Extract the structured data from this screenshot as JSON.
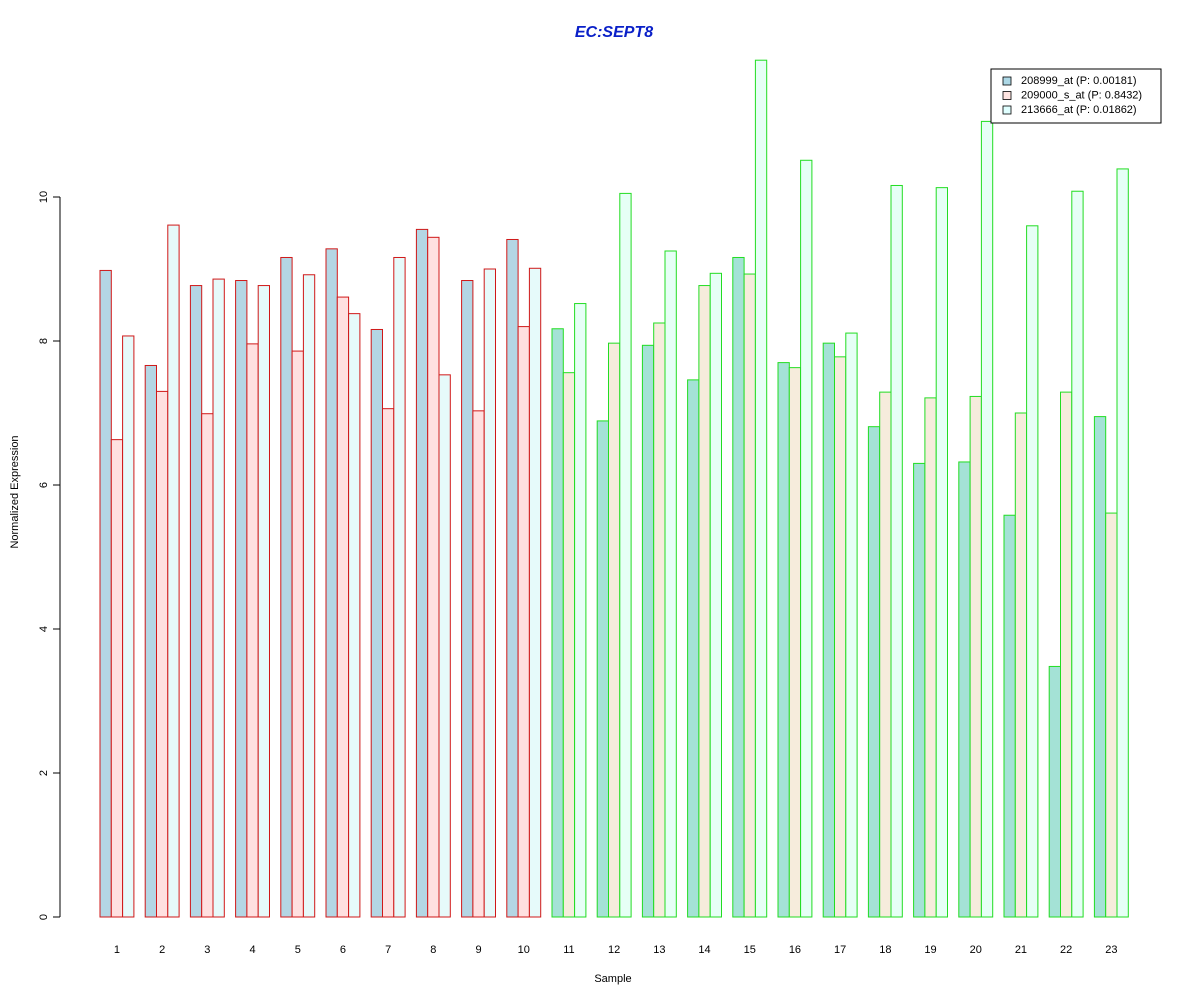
{
  "chart_data": {
    "type": "bar",
    "title": "EC:SEPT8",
    "xlabel": "Sample",
    "ylabel": "Normalized Expression",
    "categories": [
      "1",
      "2",
      "3",
      "4",
      "5",
      "6",
      "7",
      "8",
      "9",
      "10",
      "11",
      "12",
      "13",
      "14",
      "15",
      "16",
      "17",
      "18",
      "19",
      "20",
      "21",
      "22",
      "23"
    ],
    "yticks": [
      "0",
      "2",
      "4",
      "6",
      "8",
      "10"
    ],
    "ylim": [
      0,
      12.4
    ],
    "grid": false,
    "legend_position": "top-right",
    "legend": [
      "208999_at (P: 0.00181)",
      "209000_s_at (P: 0.8432)",
      "213666_at (P: 0.01862)"
    ],
    "series": [
      {
        "values": [
          8.98,
          7.66,
          8.77,
          8.84,
          9.16,
          9.28,
          8.16,
          9.55,
          8.84,
          9.41,
          8.17,
          6.89,
          7.94,
          7.46,
          9.16,
          7.7,
          7.97,
          6.81,
          6.3,
          6.32,
          5.58,
          3.48,
          6.95
        ]
      },
      {
        "values": [
          6.63,
          7.3,
          6.99,
          7.96,
          7.86,
          8.61,
          7.06,
          9.44,
          7.03,
          8.2,
          7.56,
          7.97,
          8.25,
          8.77,
          8.93,
          7.63,
          7.78,
          7.29,
          7.21,
          7.23,
          7.0,
          7.29,
          5.61
        ]
      },
      {
        "values": [
          8.07,
          9.61,
          8.86,
          8.77,
          8.92,
          8.38,
          9.16,
          7.53,
          9.0,
          9.01,
          8.52,
          10.05,
          9.25,
          8.94,
          11.9,
          10.51,
          8.11,
          10.16,
          10.13,
          11.05,
          9.6,
          10.08,
          10.39
        ]
      }
    ],
    "group_split_after_index": 9,
    "colors": {
      "title": "#0a20c8",
      "group1_outline": "#d01818",
      "group2_outline": "#22dd22",
      "group1_fills": [
        "#b4d6e4",
        "#ffe0e0",
        "#e6fafa"
      ],
      "group2_fills": [
        "#a4e2d6",
        "#f6ecdc",
        "#e6fff6"
      ],
      "legend_fills": [
        "#add8e6",
        "#ffe4e1",
        "#e0ffff"
      ],
      "axis": "#000000"
    }
  }
}
